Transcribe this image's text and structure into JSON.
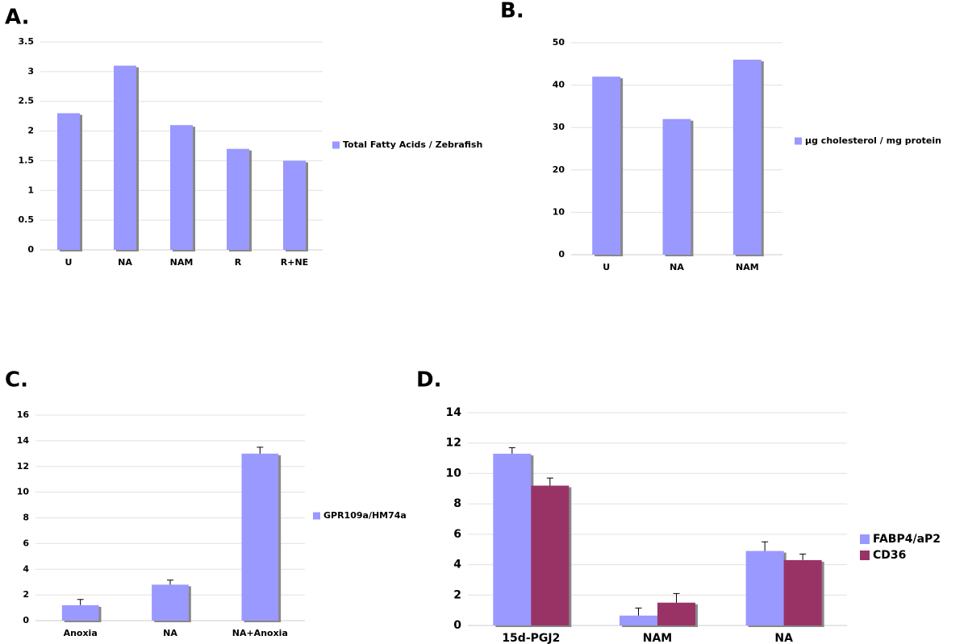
{
  "chart_data": [
    {
      "type": "bar",
      "panel": "A.",
      "categories": [
        "U",
        "NA",
        "NAM",
        "R",
        "R+NE"
      ],
      "series": [
        {
          "name": "Total Fatty Acids / Zebrafish",
          "color": "#9999ff",
          "values": [
            2.3,
            3.1,
            2.1,
            1.7,
            1.5
          ]
        }
      ],
      "ylim": [
        0,
        3.5
      ],
      "yticks": [
        0,
        0.5,
        1,
        1.5,
        2,
        2.5,
        3,
        3.5
      ],
      "grid": true
    },
    {
      "type": "bar",
      "panel": "B.",
      "categories": [
        "U",
        "NA",
        "NAM"
      ],
      "series": [
        {
          "name": "µg cholesterol / mg protein",
          "color": "#9999ff",
          "values": [
            42,
            32,
            46
          ]
        }
      ],
      "ylim": [
        0,
        50
      ],
      "yticks": [
        0,
        10,
        20,
        30,
        40,
        50
      ],
      "grid": true
    },
    {
      "type": "bar",
      "panel": "C.",
      "categories": [
        "Anoxia",
        "NA",
        "NA+Anoxia"
      ],
      "series": [
        {
          "name": "GPR109a/HM74a",
          "color": "#9999ff",
          "values": [
            1.2,
            2.8,
            13
          ],
          "errors": [
            0.45,
            0.35,
            0.5
          ]
        }
      ],
      "ylim": [
        0,
        16
      ],
      "yticks": [
        0,
        2,
        4,
        6,
        8,
        10,
        12,
        14,
        16
      ],
      "grid": true
    },
    {
      "type": "bar",
      "panel": "D.",
      "categories": [
        "15d-PGJ2",
        "NAM",
        "NA"
      ],
      "series": [
        {
          "name": "FABP4/aP2",
          "color": "#9999ff",
          "values": [
            11.3,
            0.65,
            4.9
          ],
          "errors": [
            0.4,
            0.5,
            0.6
          ]
        },
        {
          "name": "CD36",
          "color": "#993366",
          "values": [
            9.2,
            1.5,
            4.3
          ],
          "errors": [
            0.5,
            0.6,
            0.4
          ]
        }
      ],
      "ylim": [
        0,
        14
      ],
      "yticks": [
        0,
        2,
        4,
        6,
        8,
        10,
        12,
        14
      ],
      "grid": true
    }
  ]
}
